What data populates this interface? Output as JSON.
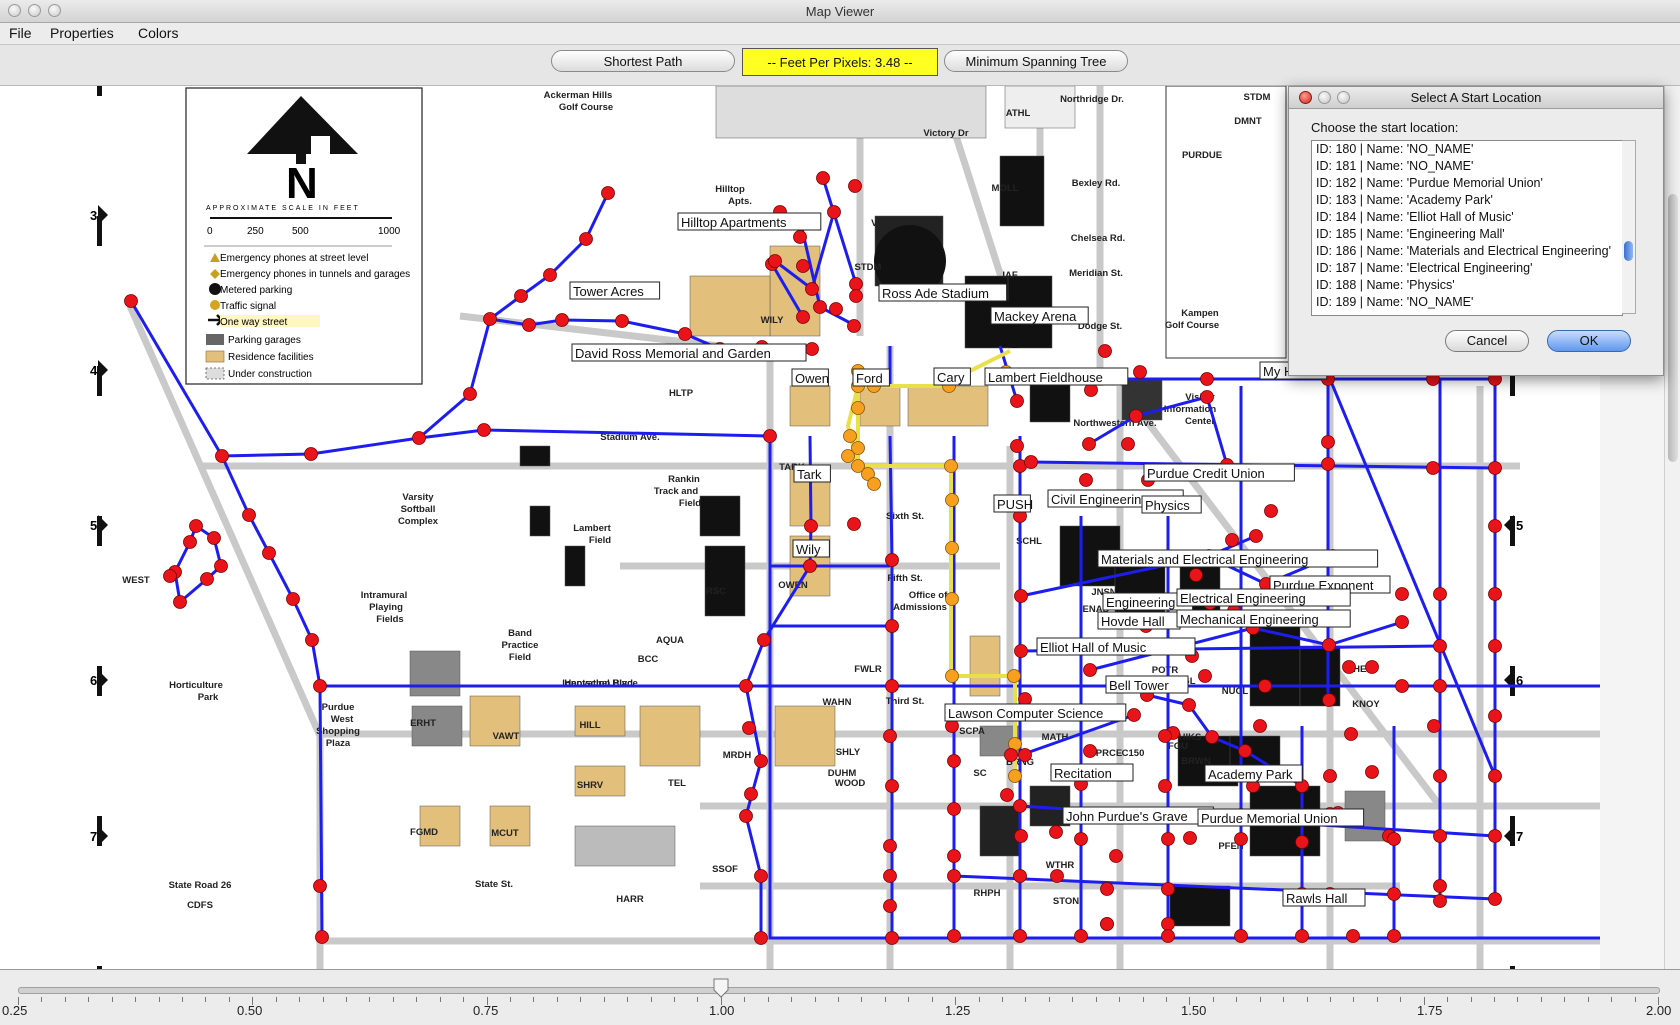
{
  "window": {
    "title": "Map Viewer"
  },
  "menu": [
    "File",
    "Properties",
    "Colors"
  ],
  "toolbar": {
    "shortest_path": "Shortest Path",
    "feet_per_pixels": "--  Feet Per Pixels: 3.48  --",
    "min_spanning_tree": "Minimum Spanning Tree"
  },
  "map": {
    "legend": {
      "north": "N",
      "scale_title": "APPROXIMATE SCALE IN FEET",
      "scale_ticks": [
        "0",
        "250",
        "500",
        "1000"
      ],
      "items": [
        "Emergency phones at street level",
        "Emergency phones in tunnels and garages",
        "Metered parking",
        "Traffic signal",
        "One way street",
        "Parking garages",
        "Residence facilities",
        "Under construction"
      ]
    },
    "grid_numbers": [
      "3",
      "4",
      "5",
      "6",
      "7"
    ],
    "labels": [
      "Hilltop Apartments",
      "Tower Acres",
      "Ross Ade Stadium",
      "Mackey Arena",
      "David Ross Memorial and Garden",
      "Owen",
      "Ford",
      "Cary",
      "Lambert Fieldhouse",
      "My House",
      "Purdue Credit Union",
      "Tark",
      "PUSH",
      "Civil Engineering",
      "Physics",
      "Wily",
      "Materials and Electrical Engineering",
      "Purdue Exponent",
      "Engineering",
      "Electrical Engineering",
      "Hovde Hall",
      "Mechanical Engineering",
      "Elliot Hall of Music",
      "Bell Tower",
      "Lawson Computer Science",
      "Recitation",
      "Academy Park",
      "John Purdue's Grave",
      "Purdue Memorial Union",
      "Rawls Hall"
    ],
    "base_text": [
      "Ackerman Hills",
      "Golf Course",
      "Hilltop",
      "Apts.",
      "Varsity",
      "Softball",
      "Complex",
      "Lambert",
      "Field",
      "Rankin",
      "Track and",
      "Field",
      "Intramural",
      "Playing",
      "Fields",
      "Band",
      "Practice",
      "Field",
      "Horticulture",
      "Park",
      "Purdue",
      "West",
      "Shopping",
      "Plaza",
      "Office of",
      "Admissions",
      "Visitor",
      "Information",
      "Center",
      "Kampen",
      "Golf Course",
      "Stadium Ave.",
      "State Road 26",
      "State St.",
      "Third St.",
      "Fifth St.",
      "Sixth St.",
      "Northwestern Ave.",
      "Northridge Dr.",
      "Bexley Rd.",
      "Chelsea Rd.",
      "Meridian St.",
      "Dodge St.",
      "Victory Dr",
      "WEST",
      "MOLL",
      "STDM",
      "IAF",
      "ATHL",
      "RSC",
      "AQUA",
      "TARK",
      "OWEN",
      "WILY",
      "HLTP",
      "SCPA",
      "FGU",
      "WTHR",
      "STON",
      "PFEN",
      "HIKS",
      "BRWN",
      "HEAV",
      "KNOY",
      "NUCL",
      "MGL",
      "POTR",
      "ENAD",
      "JNSN",
      "SCHL",
      "RHPH",
      "BRNG",
      "MATH",
      "PRCE",
      "C150",
      "SC",
      "TEL",
      "MRDH",
      "WOOD",
      "DUHM",
      "SHLY",
      "WAHN",
      "VAWT",
      "HILL",
      "SHRV",
      "ERHT",
      "FGMD",
      "MCUT",
      "HARR",
      "CDFS",
      "SSOF",
      "FWLR",
      "BCC",
      "DMNT",
      "VTCH",
      "STDM",
      "PURDUE",
      "Hentschel Blvd.",
      "Innovation Place"
    ]
  },
  "slider": {
    "value": 1.0,
    "min": 0.25,
    "max": 2.0,
    "labels": [
      "0.25",
      "0.50",
      "0.75",
      "1.00",
      "1.25",
      "1.50",
      "1.75",
      "2.00"
    ]
  },
  "dialog": {
    "title": "Select A Start Location",
    "prompt": "Choose the start location:",
    "items": [
      "ID: 180 | Name: 'NO_NAME'",
      "ID: 181 | Name: 'NO_NAME'",
      "ID: 182 | Name: 'Purdue Memorial Union'",
      "ID: 183 | Name: 'Academy Park'",
      "ID: 184 | Name: 'Elliot Hall of Music'",
      "ID: 185 | Name: 'Engineering Mall'",
      "ID: 186 | Name: 'Materials and Electrical Engineering'",
      "ID: 187 | Name: 'Electrical Engineering'",
      "ID: 188 | Name: 'Physics'",
      "ID: 189 | Name: 'NO_NAME'"
    ],
    "cancel": "Cancel",
    "ok": "OK"
  }
}
